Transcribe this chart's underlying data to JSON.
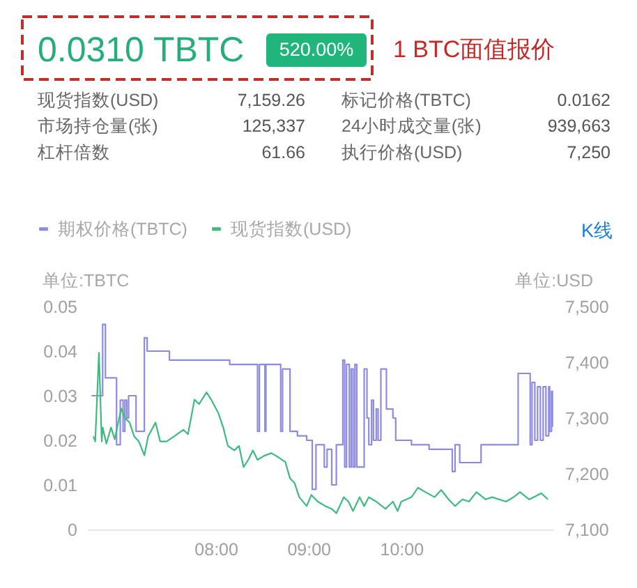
{
  "chart_data": [
    {
      "type": "other",
      "title": "0.0310 TBTC",
      "annotations": [
        "520.00%",
        "1 BTC面值报价",
        "现货指数(USD)",
        "7,159.26",
        "标记价格(TBTC)",
        "0.0162",
        "市场持仓量(张)",
        "125,337",
        "24小时成交量(张)",
        "939,663",
        "杠杆倍数",
        "61.66",
        "执行价格(USD)",
        "7,250"
      ]
    },
    {
      "type": "line",
      "ylabel": "单位:TBTC",
      "y2label": "单位:USD",
      "annotations": [
        "K线"
      ],
      "xlim": [
        6.62,
        11.64
      ],
      "xticks": [
        {
          "value": 8,
          "label": "08:00"
        },
        {
          "value": 9,
          "label": "09:00"
        },
        {
          "value": 10,
          "label": "10:00"
        }
      ],
      "ylim": [
        0,
        0.05
      ],
      "yticks": [
        0,
        0.01,
        0.02,
        0.03,
        0.04,
        0.05
      ],
      "y2lim": [
        7100,
        7500
      ],
      "y2ticks": [
        {
          "value": 7100,
          "label": "7,100"
        },
        {
          "value": 7200,
          "label": "7,200"
        },
        {
          "value": 7300,
          "label": "7,300"
        },
        {
          "value": 7400,
          "label": "7,400"
        },
        {
          "value": 7500,
          "label": "7,500"
        }
      ],
      "grid": false,
      "legend": "top left",
      "series": [
        {
          "name": "期权价格(TBTC)",
          "color": "#8d8be0",
          "type": "step",
          "x": [
            6.66,
            6.78,
            6.81,
            6.93,
            6.97,
            7.0,
            7.02,
            7.04,
            7.06,
            7.14,
            7.23,
            7.26,
            7.5,
            8.15,
            8.45,
            8.47,
            8.53,
            8.54,
            8.7,
            8.72,
            8.8,
            8.88,
            8.98,
            9.04,
            9.08,
            9.17,
            9.2,
            9.25,
            9.3,
            9.37,
            9.39,
            9.41,
            9.44,
            9.46,
            9.48,
            9.5,
            9.52,
            9.6,
            9.63,
            9.65,
            9.68,
            9.7,
            9.73,
            9.75,
            9.78,
            9.84,
            9.91,
            9.94,
            10.11,
            10.3,
            10.55,
            10.58,
            10.63,
            10.86,
            11.26,
            11.39,
            11.41,
            11.44,
            11.47,
            11.5,
            11.53,
            11.56,
            11.59,
            11.6,
            11.62,
            11.63
          ],
          "values": [
            0.03,
            0.046,
            0.034,
            0.019,
            0.029,
            0.022,
            0.029,
            0.025,
            0.03,
            0.022,
            0.043,
            0.04,
            0.038,
            0.037,
            0.022,
            0.037,
            0.022,
            0.037,
            0.022,
            0.036,
            0.022,
            0.021,
            0.02,
            0.009,
            0.019,
            0.014,
            0.018,
            0.01,
            0.019,
            0.038,
            0.014,
            0.037,
            0.014,
            0.036,
            0.014,
            0.037,
            0.014,
            0.036,
            0.025,
            0.019,
            0.029,
            0.02,
            0.027,
            0.02,
            0.036,
            0.027,
            0.025,
            0.02,
            0.019,
            0.018,
            0.013,
            0.019,
            0.015,
            0.019,
            0.035,
            0.019,
            0.033,
            0.02,
            0.032,
            0.02,
            0.032,
            0.021,
            0.032,
            0.022,
            0.031,
            0.023
          ]
        },
        {
          "name": "现货指数(USD)",
          "color": "#3dbb7f",
          "type": "line",
          "axis": "y2",
          "x": [
            6.68,
            6.7,
            6.74,
            6.77,
            6.78,
            6.82,
            6.87,
            6.91,
            6.98,
            7.02,
            7.07,
            7.12,
            7.17,
            7.23,
            7.27,
            7.35,
            7.4,
            7.47,
            7.55,
            7.65,
            7.7,
            7.77,
            7.82,
            7.9,
            7.95,
            8.03,
            8.08,
            8.13,
            8.2,
            8.25,
            8.3,
            8.35,
            8.4,
            8.45,
            8.53,
            8.6,
            8.68,
            8.75,
            8.8,
            8.85,
            8.9,
            8.98,
            9.03,
            9.1,
            9.18,
            9.25,
            9.3,
            9.38,
            9.43,
            9.48,
            9.55,
            9.6,
            9.65,
            9.73,
            9.83,
            9.91,
            9.96,
            10.0,
            10.11,
            10.18,
            10.26,
            10.36,
            10.43,
            10.51,
            10.58,
            10.66,
            10.73,
            10.81,
            10.91,
            10.98,
            11.13,
            11.21,
            11.28,
            11.38,
            11.51,
            11.58
          ],
          "values": [
            7267,
            7258,
            7417,
            7258,
            7283,
            7254,
            7283,
            7262,
            7317,
            7300,
            7292,
            7267,
            7258,
            7233,
            7267,
            7292,
            7258,
            7258,
            7267,
            7279,
            7271,
            7333,
            7325,
            7346,
            7333,
            7308,
            7283,
            7250,
            7242,
            7250,
            7212,
            7225,
            7242,
            7225,
            7233,
            7237,
            7229,
            7221,
            7192,
            7183,
            7158,
            7142,
            7162,
            7150,
            7142,
            7137,
            7129,
            7158,
            7150,
            7133,
            7158,
            7142,
            7158,
            7150,
            7137,
            7150,
            7133,
            7150,
            7158,
            7175,
            7167,
            7158,
            7171,
            7154,
            7142,
            7154,
            7150,
            7167,
            7154,
            7158,
            7150,
            7158,
            7167,
            7154,
            7165,
            7154
          ]
        }
      ]
    }
  ]
}
